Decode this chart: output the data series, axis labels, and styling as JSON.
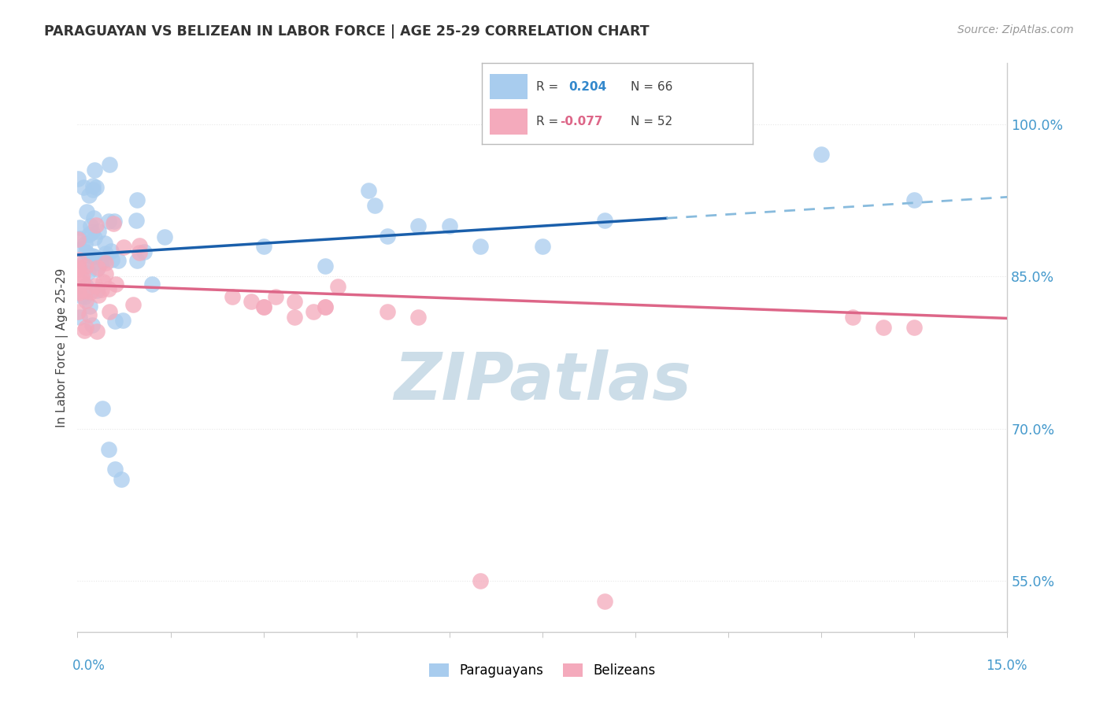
{
  "title": "PARAGUAYAN VS BELIZEAN IN LABOR FORCE | AGE 25-29 CORRELATION CHART",
  "source": "Source: ZipAtlas.com",
  "ylabel": "In Labor Force | Age 25-29",
  "xlim": [
    0.0,
    0.15
  ],
  "ylim": [
    0.5,
    1.06
  ],
  "ytick_vals": [
    0.55,
    0.7,
    0.85,
    1.0
  ],
  "ytick_labels": [
    "55.0%",
    "70.0%",
    "85.0%",
    "100.0%"
  ],
  "blue_face": "#A8CCEE",
  "pink_face": "#F4AABC",
  "trend_blue_solid": "#1A5FAB",
  "trend_blue_dash": "#88BBDD",
  "trend_pink": "#DD6688",
  "legend_r1": "0.204",
  "legend_n1": "66",
  "legend_r2": "-0.077",
  "legend_n2": "52",
  "watermark": "ZIPatlas",
  "watermark_color": "#CCDDE8",
  "background": "#FFFFFF",
  "grid_color": "#E8E8E8",
  "title_color": "#333333",
  "source_color": "#999999",
  "axis_color": "#4499CC",
  "text_color": "#555555"
}
